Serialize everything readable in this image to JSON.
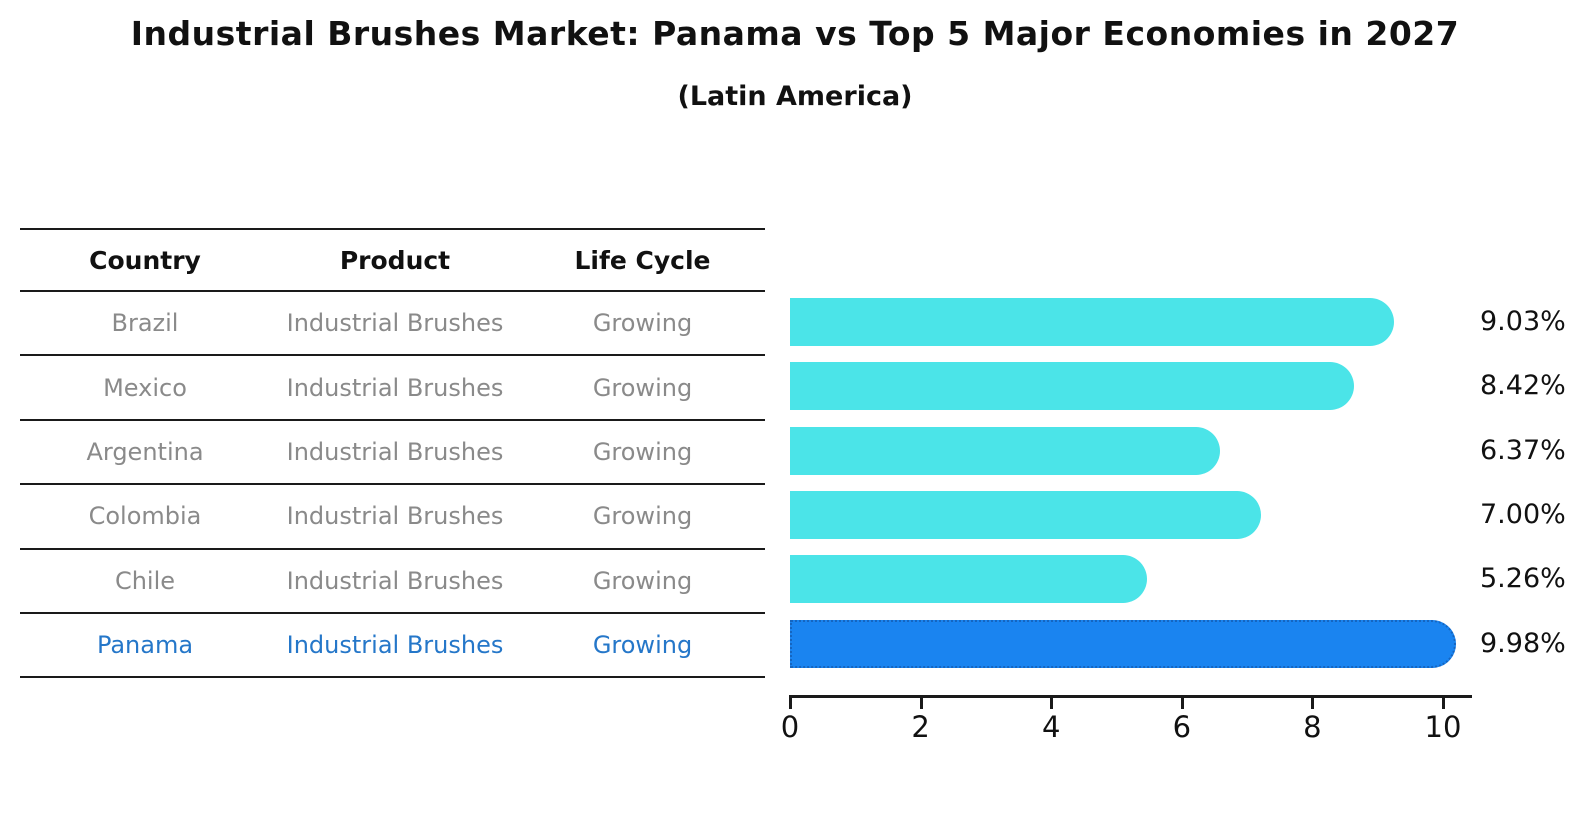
{
  "title": "Industrial Brushes Market: Panama vs Top 5 Major Economies in 2027",
  "subtitle": "(Latin America)",
  "table": {
    "headers": [
      "Country",
      "Product",
      "Life Cycle"
    ],
    "rows": [
      {
        "country": "Brazil",
        "product": "Industrial Brushes",
        "life_cycle": "Growing",
        "highlight": false
      },
      {
        "country": "Mexico",
        "product": "Industrial Brushes",
        "life_cycle": "Growing",
        "highlight": false
      },
      {
        "country": "Argentina",
        "product": "Industrial Brushes",
        "life_cycle": "Growing",
        "highlight": false
      },
      {
        "country": "Colombia",
        "product": "Industrial Brushes",
        "life_cycle": "Growing",
        "highlight": false
      },
      {
        "country": "Chile",
        "product": "Industrial Brushes",
        "life_cycle": "Growing",
        "highlight": false
      },
      {
        "country": "Panama",
        "product": "Industrial Brushes",
        "life_cycle": "Growing",
        "highlight": true
      }
    ]
  },
  "chart_data": {
    "type": "bar",
    "orientation": "horizontal",
    "title": "Industrial Brushes Market: Panama vs Top 5 Major Economies in 2027",
    "subtitle": "(Latin America)",
    "categories": [
      "Brazil",
      "Mexico",
      "Argentina",
      "Colombia",
      "Chile",
      "Panama"
    ],
    "values": [
      9.03,
      8.42,
      6.37,
      7.0,
      5.26,
      9.98
    ],
    "value_labels": [
      "9.03%",
      "8.42%",
      "6.37%",
      "7.00%",
      "5.26%",
      "9.98%"
    ],
    "xlabel": "",
    "ylabel": "",
    "xlim": [
      0,
      10.5
    ],
    "x_ticks": [
      0,
      2,
      4,
      6,
      8,
      10
    ],
    "grid": false,
    "legend": false,
    "highlight_index": 5
  },
  "colors": {
    "bar_default": "#4be4e8",
    "bar_highlight": "#1a84f0",
    "bar_highlight_border": "#1565c0",
    "highlight_text": "#2577c9",
    "row_text": "#8a8a8a",
    "header_text": "#111111",
    "rule_line": "#1a1a1a"
  }
}
